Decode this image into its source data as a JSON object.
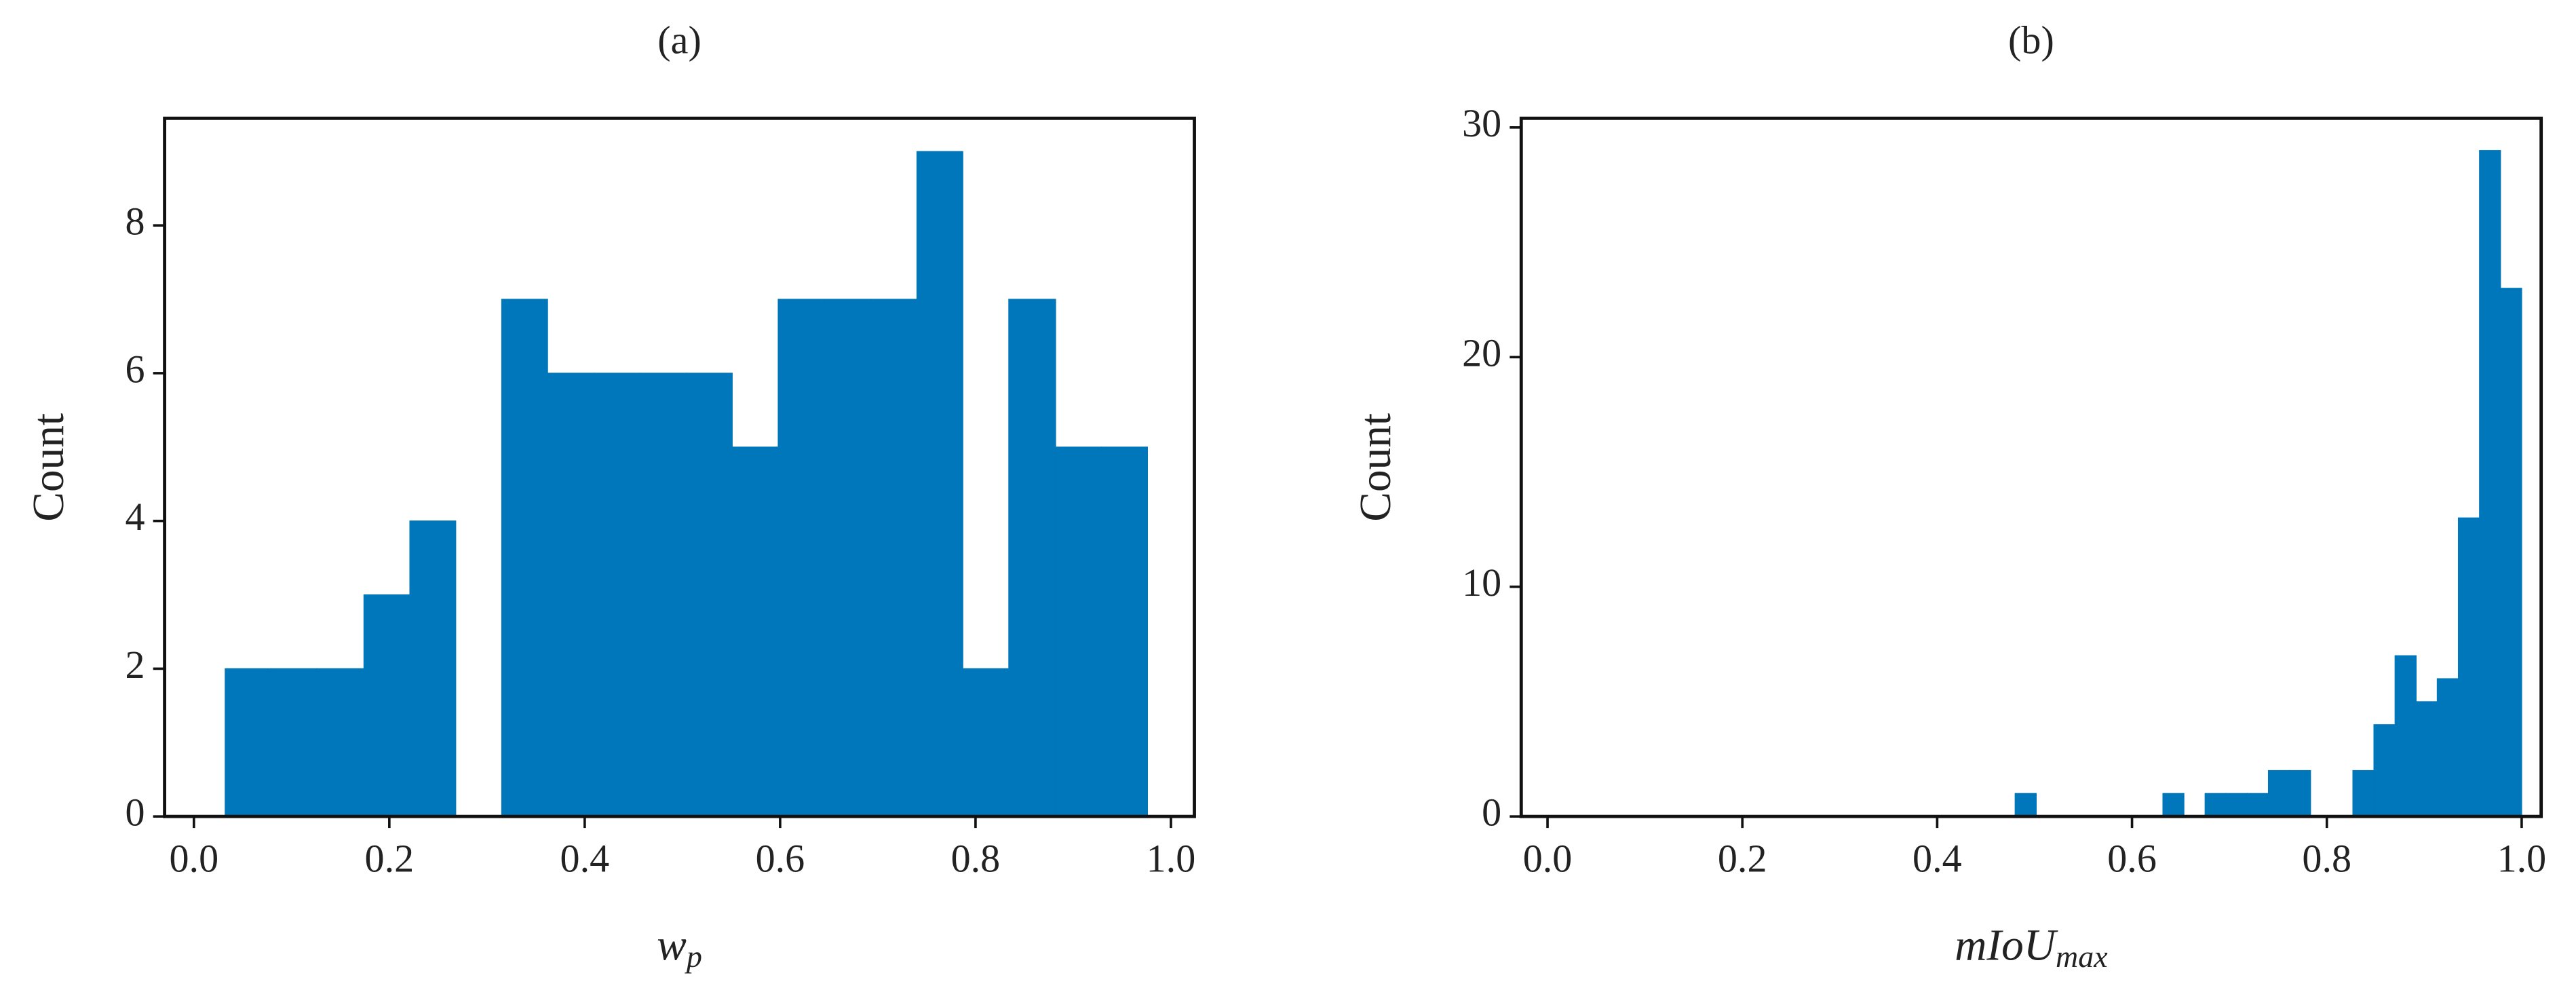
{
  "chart_data": [
    {
      "type": "histogram",
      "title": "(a)",
      "xlabel": {
        "base": "w",
        "subscript": "p"
      },
      "ylabel": "Count",
      "bins": [
        0.032,
        0.079,
        0.126,
        0.174,
        0.221,
        0.268,
        0.315,
        0.362,
        0.41,
        0.457,
        0.504,
        0.551,
        0.598,
        0.646,
        0.693,
        0.74,
        0.787,
        0.834,
        0.882,
        0.929,
        0.976
      ],
      "values": [
        2,
        2,
        2,
        3,
        4,
        0,
        7,
        6,
        6,
        6,
        6,
        5,
        7,
        7,
        7,
        9,
        2,
        7,
        5,
        5
      ],
      "color": "#0077bb",
      "xlim": [
        -0.03,
        1.024
      ],
      "ylim": [
        0,
        9.45
      ],
      "xticks": [
        {
          "value": 0,
          "label": "0.0"
        },
        {
          "value": 0.2,
          "label": "0.2"
        },
        {
          "value": 0.4,
          "label": "0.4"
        },
        {
          "value": 0.6,
          "label": "0.6"
        },
        {
          "value": 0.8,
          "label": "0.8"
        },
        {
          "value": 1,
          "label": "1.0"
        }
      ],
      "yticks": [
        0,
        2,
        4,
        6,
        8
      ]
    },
    {
      "type": "histogram",
      "title": "(b)",
      "xlabel": {
        "base": "mIoU",
        "subscript": "max"
      },
      "ylabel": "Count",
      "bins": [
        0.48,
        0.5017,
        0.5233,
        0.545,
        0.5667,
        0.5883,
        0.61,
        0.6317,
        0.6533,
        0.675,
        0.6967,
        0.7183,
        0.74,
        0.7617,
        0.7833,
        0.805,
        0.8267,
        0.8483,
        0.87,
        0.8917,
        0.9133,
        0.935,
        0.9567,
        0.9783,
        1.0
      ],
      "values": [
        1,
        0,
        0,
        0,
        0,
        0,
        0,
        1,
        0,
        1,
        1,
        1,
        2,
        2,
        0,
        0,
        2,
        4,
        7,
        5,
        6,
        13,
        29,
        23
      ],
      "color": "#0077bb",
      "xlim": [
        -0.027,
        1.02
      ],
      "ylim": [
        0,
        30.4
      ],
      "xticks": [
        {
          "value": 0,
          "label": "0.0"
        },
        {
          "value": 0.2,
          "label": "0.2"
        },
        {
          "value": 0.4,
          "label": "0.4"
        },
        {
          "value": 0.6,
          "label": "0.6"
        },
        {
          "value": 0.8,
          "label": "0.8"
        },
        {
          "value": 1,
          "label": "1.0"
        }
      ],
      "yticks": [
        0,
        10,
        20,
        30
      ]
    }
  ]
}
